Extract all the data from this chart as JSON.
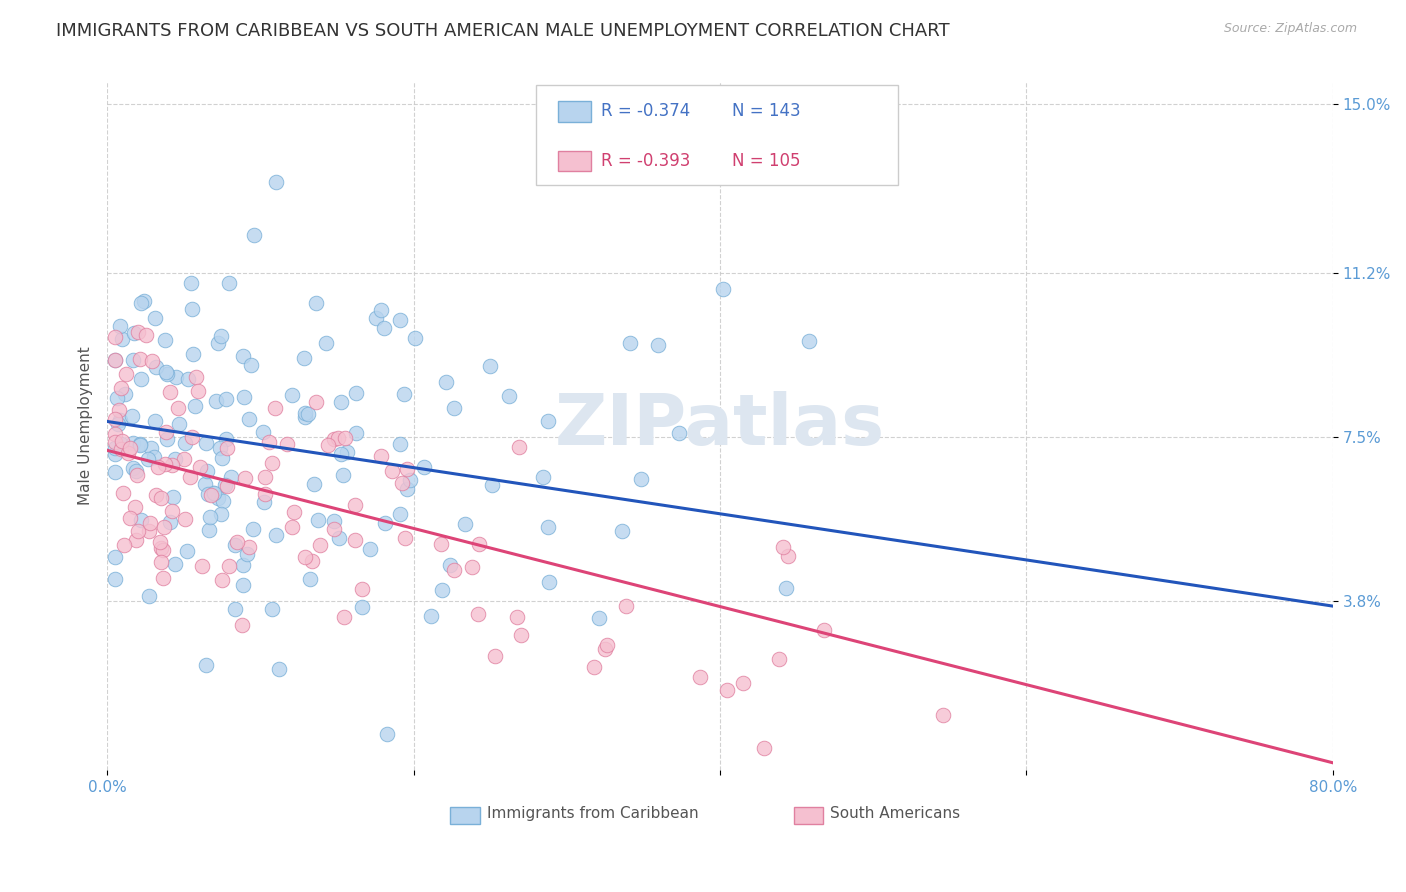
{
  "title": "IMMIGRANTS FROM CARIBBEAN VS SOUTH AMERICAN MALE UNEMPLOYMENT CORRELATION CHART",
  "source": "Source: ZipAtlas.com",
  "ylabel": "Male Unemployment",
  "xlim": [
    0.0,
    0.8
  ],
  "ylim": [
    0.0,
    0.155
  ],
  "ytick_vals": [
    0.038,
    0.075,
    0.112,
    0.15
  ],
  "ytick_labels": [
    "3.8%",
    "7.5%",
    "11.2%",
    "15.0%"
  ],
  "xtick_vals": [
    0.0,
    0.2,
    0.4,
    0.6,
    0.8
  ],
  "xtick_labels": [
    "0.0%",
    "",
    "",
    "",
    "80.0%"
  ],
  "background_color": "#ffffff",
  "watermark": "ZIPatlas",
  "caribbean_color": "#b8d4ee",
  "caribbean_edge_color": "#7ab0d8",
  "south_american_color": "#f5c0d0",
  "south_american_edge_color": "#e080a0",
  "trend_caribbean_color": "#2255bb",
  "trend_south_american_color": "#dd4477",
  "R_caribbean": "-0.374",
  "N_caribbean": "143",
  "R_south_american": "-0.393",
  "N_south_american": "105",
  "legend_r_color_caribbean": "#4472c4",
  "legend_r_color_sa": "#d04070",
  "watermark_color": "#dde6f0",
  "watermark_fontsize": 52,
  "title_fontsize": 13,
  "axis_label_fontsize": 11,
  "tick_fontsize": 11,
  "source_fontsize": 9,
  "trend_caribbean_intercept": 0.0785,
  "trend_caribbean_slope": -0.052,
  "trend_sa_intercept": 0.072,
  "trend_sa_slope": -0.088
}
